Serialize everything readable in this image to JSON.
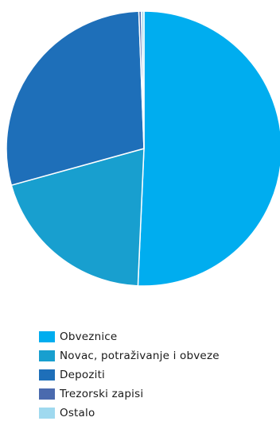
{
  "chart_data": {
    "type": "pie",
    "slices": [
      {
        "label": "Obveznice",
        "value": 50.7,
        "color": "#00adef"
      },
      {
        "label": "Novac, potraživanje i obveze",
        "value": 20.0,
        "color": "#189fcf"
      },
      {
        "label": "Depoziti",
        "value": 28.7,
        "color": "#1e6fb9"
      },
      {
        "label": "Trezorski zapisi",
        "value": 0.3,
        "color": "#4a6aae"
      },
      {
        "label": "Ostalo",
        "value": 0.3,
        "color": "#9fd9ef"
      }
    ],
    "legend_position": "bottom-left",
    "start_angle_deg": 0,
    "direction": "clockwise"
  }
}
